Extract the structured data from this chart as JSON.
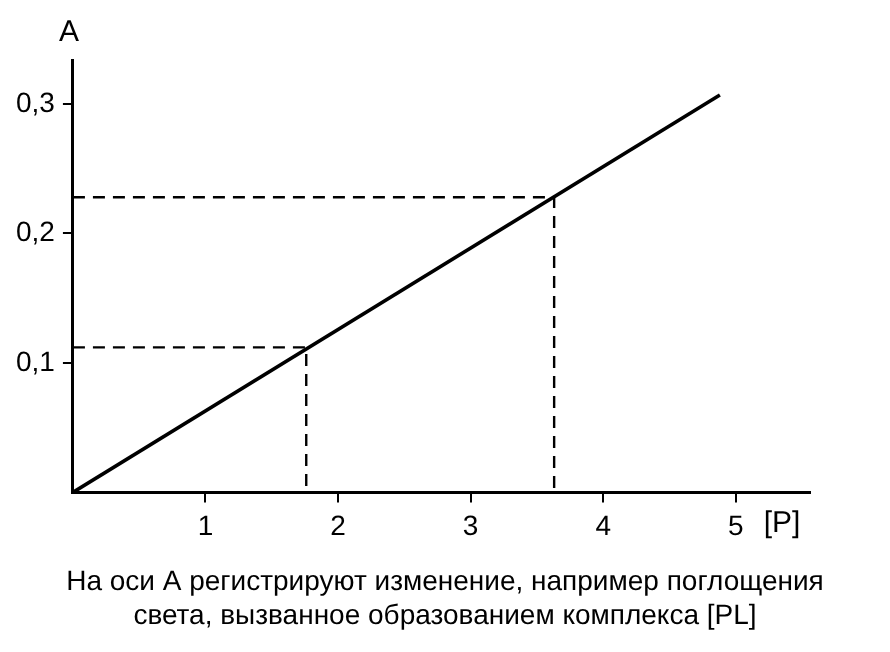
{
  "chart_data": {
    "type": "line",
    "xlabel": "[P]",
    "ylabel": "A",
    "xlim": [
      0,
      5.56
    ],
    "ylim": [
      0,
      0.334
    ],
    "xticks": [
      1,
      2,
      3,
      4,
      5
    ],
    "yticks": [
      {
        "value": 0.1,
        "label": "0,1"
      },
      {
        "value": 0.2,
        "label": "0,2"
      },
      {
        "value": 0.3,
        "label": "0,3"
      }
    ],
    "series": [
      {
        "color": "#000000",
        "x": [
          0,
          4.88
        ],
        "values": [
          0,
          0.307
        ],
        "line_style": "solid"
      },
      {
        "color": "#000000",
        "x": [
          0,
          1.76,
          1.76
        ],
        "values": [
          0.112,
          0.112,
          0
        ],
        "line_style": "dashed"
      },
      {
        "color": "#000000",
        "x": [
          0,
          3.63,
          3.63
        ],
        "values": [
          0.228,
          0.228,
          0
        ],
        "line_style": "dashed"
      }
    ],
    "grid": false,
    "legend": false,
    "marker": "none",
    "annotations": [
      "На оси А регистрируют изменение, например поглощения света, вызванное образованием комплекса [PL]"
    ]
  }
}
